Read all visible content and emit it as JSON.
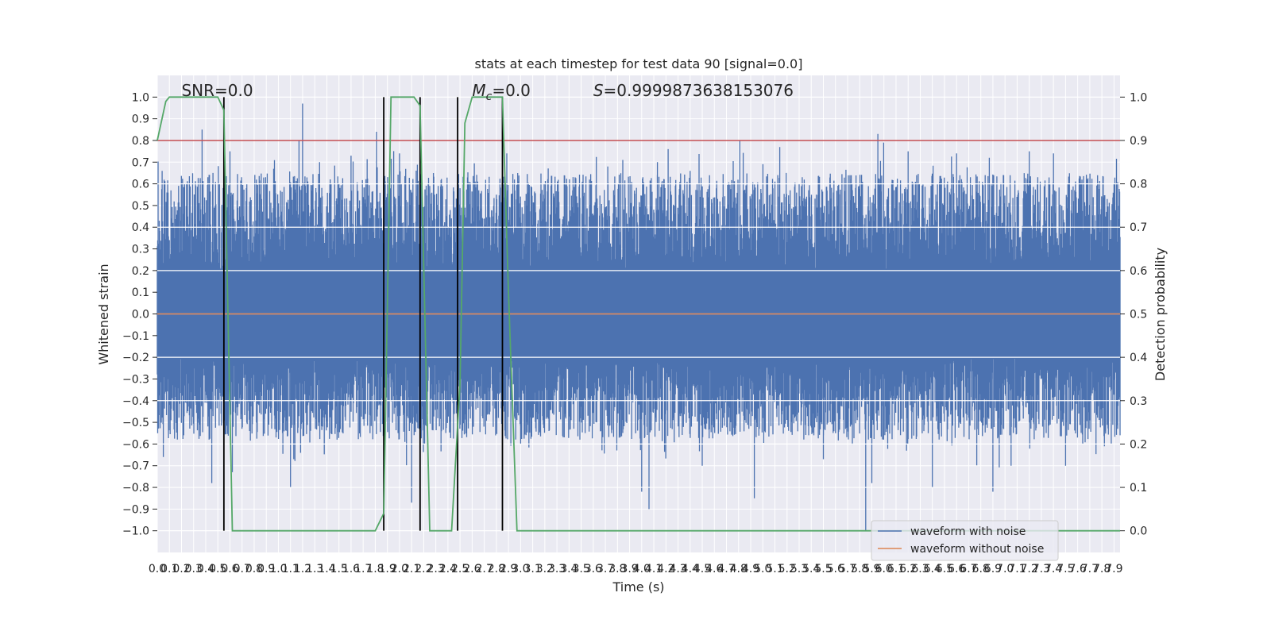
{
  "chart_data": {
    "type": "line",
    "title": "stats at each timestep for test data 90 [signal=0.0]",
    "xlabel": "Time (s)",
    "ylabel": "Whitened strain",
    "y2label": "Detection probability",
    "xlim": [
      0.0,
      7.95
    ],
    "ylim": [
      -1.1,
      1.1
    ],
    "y2lim": [
      -0.05,
      1.05
    ],
    "x_ticks": [
      "0.0",
      "0.1",
      "0.2",
      "0.3",
      "0.4",
      "0.5",
      "0.6",
      "0.7",
      "0.8",
      "0.9",
      "1.0",
      "1.1",
      "1.2",
      "1.3",
      "1.4",
      "1.5",
      "1.6",
      "1.7",
      "1.8",
      "1.9",
      "2.0",
      "2.1",
      "2.2",
      "2.3",
      "2.4",
      "2.5",
      "2.6",
      "2.7",
      "2.8",
      "2.9",
      "3.0",
      "3.1",
      "3.2",
      "3.3",
      "3.4",
      "3.5",
      "3.6",
      "3.7",
      "3.8",
      "3.9",
      "4.0",
      "4.1",
      "4.2",
      "4.3",
      "4.4",
      "4.5",
      "4.6",
      "4.7",
      "4.8",
      "4.9",
      "5.0",
      "5.1",
      "5.2",
      "5.3",
      "5.4",
      "5.5",
      "5.6",
      "5.7",
      "5.8",
      "5.9",
      "6.0",
      "6.1",
      "6.2",
      "6.3",
      "6.4",
      "6.5",
      "6.6",
      "6.7",
      "6.8",
      "6.9",
      "7.0",
      "7.1",
      "7.2",
      "7.3",
      "7.4",
      "7.5",
      "7.6",
      "7.7",
      "7.8",
      "7.9"
    ],
    "y_ticks": [
      "1.0",
      "0.9",
      "0.8",
      "0.7",
      "0.6",
      "0.5",
      "0.4",
      "0.3",
      "0.2",
      "0.1",
      "0.0",
      "-0.1",
      "-0.2",
      "-0.3",
      "-0.4",
      "-0.5",
      "-0.6",
      "-0.7",
      "-0.8",
      "-0.9",
      "-1.0"
    ],
    "y2_ticks": [
      "1.0",
      "0.9",
      "0.8",
      "0.7",
      "0.6",
      "0.5",
      "0.4",
      "0.3",
      "0.2",
      "0.1",
      "0.0"
    ],
    "grid": true,
    "legend_position": "lower-right",
    "series": [
      {
        "name": "waveform with noise",
        "color": "#4c72b0",
        "description": "noise band, typical amplitude 0.3–0.7, sparse spikes",
        "peaks": [
          [
            0.04,
            0.66
          ],
          [
            0.37,
            0.85
          ],
          [
            0.46,
            0.65
          ],
          [
            0.6,
            0.75
          ],
          [
            0.9,
            0.6
          ],
          [
            1.17,
            0.8
          ],
          [
            1.2,
            0.97
          ],
          [
            1.34,
            0.7
          ],
          [
            1.5,
            0.6
          ],
          [
            1.6,
            0.73
          ],
          [
            1.81,
            0.84
          ],
          [
            2.0,
            0.74
          ],
          [
            2.25,
            0.59
          ],
          [
            2.5,
            0.58
          ],
          [
            2.8,
            0.55
          ],
          [
            3.45,
            0.63
          ],
          [
            3.72,
            0.68
          ],
          [
            4.13,
            0.7
          ],
          [
            4.4,
            0.66
          ],
          [
            4.81,
            0.8
          ],
          [
            5.14,
            0.77
          ],
          [
            5.3,
            0.6
          ],
          [
            5.73,
            0.64
          ],
          [
            5.95,
            0.83
          ],
          [
            6.2,
            0.75
          ],
          [
            6.6,
            0.74
          ],
          [
            6.87,
            0.72
          ],
          [
            7.2,
            0.75
          ],
          [
            7.4,
            0.74
          ],
          [
            7.65,
            0.6
          ],
          [
            7.9,
            0.6
          ]
        ],
        "troughs": [
          [
            0.05,
            -0.66
          ],
          [
            0.45,
            -0.78
          ],
          [
            0.62,
            -0.73
          ],
          [
            1.1,
            -0.8
          ],
          [
            2.1,
            -0.87
          ],
          [
            3.0,
            -0.6
          ],
          [
            4.0,
            -0.82
          ],
          [
            4.06,
            -0.9
          ],
          [
            4.5,
            -0.7
          ],
          [
            4.93,
            -0.85
          ],
          [
            5.5,
            -0.67
          ],
          [
            5.85,
            -1.0
          ],
          [
            5.9,
            -0.78
          ],
          [
            6.4,
            -0.8
          ],
          [
            6.9,
            -0.82
          ],
          [
            7.05,
            -0.7
          ],
          [
            7.5,
            -0.7
          ]
        ]
      },
      {
        "name": "waveform without noise",
        "color": "#dd8452",
        "x": [
          0.0,
          7.95
        ],
        "y": [
          0.0,
          0.0
        ]
      },
      {
        "name": "",
        "axis": "right",
        "color": "#55a868",
        "x": [
          0.0,
          0.07,
          0.1,
          0.5,
          0.55,
          0.62,
          1.8,
          1.87,
          1.93,
          2.12,
          2.17,
          2.25,
          2.43,
          2.5,
          2.54,
          2.6,
          2.85,
          2.9,
          2.97,
          7.95
        ],
        "y": [
          0.9,
          0.99,
          1.0,
          1.0,
          0.97,
          0.0,
          0.0,
          0.04,
          1.0,
          1.0,
          0.98,
          0.0,
          0.0,
          0.34,
          0.94,
          1.0,
          1.0,
          0.55,
          0.0,
          0.0
        ]
      }
    ],
    "hlines": [
      {
        "axis": "right",
        "y": 0.9,
        "color": "#c44e52"
      }
    ],
    "vlines": {
      "x": [
        0.55,
        1.87,
        2.17,
        2.48,
        2.85
      ],
      "ymin": 0.0,
      "ymax": 1.0,
      "color": "#000000"
    },
    "annotations": [
      {
        "text": "SNR=0.0",
        "x": 0.2
      },
      {
        "text": "M_c=0.0",
        "x": 2.6
      },
      {
        "text": "S=0.9999873638153076",
        "x": 3.6
      }
    ]
  }
}
